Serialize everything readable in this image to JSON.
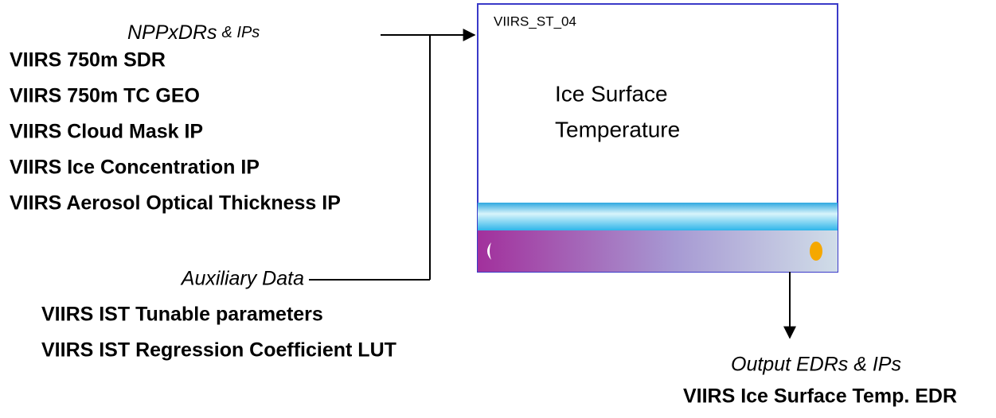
{
  "inputs": {
    "title": {
      "main": "NPPxDRs",
      "suffix": "& IPs"
    },
    "items": [
      "VIIRS 750m SDR",
      "VIIRS 750m TC GEO",
      "VIIRS Cloud Mask IP",
      "VIIRS Ice Concentration IP",
      "VIIRS Aerosol Optical Thickness IP"
    ]
  },
  "auxiliary": {
    "title": "Auxiliary Data",
    "items": [
      "VIIRS IST Tunable parameters",
      "VIIRS IST Regression Coefficient LUT"
    ]
  },
  "process": {
    "id": "VIIRS_ST_04",
    "title": [
      "Ice Surface",
      "Temperature"
    ]
  },
  "outputs": {
    "title": "Output EDRs & IPs",
    "items": [
      "VIIRS Ice Surface Temp. EDR"
    ]
  }
}
